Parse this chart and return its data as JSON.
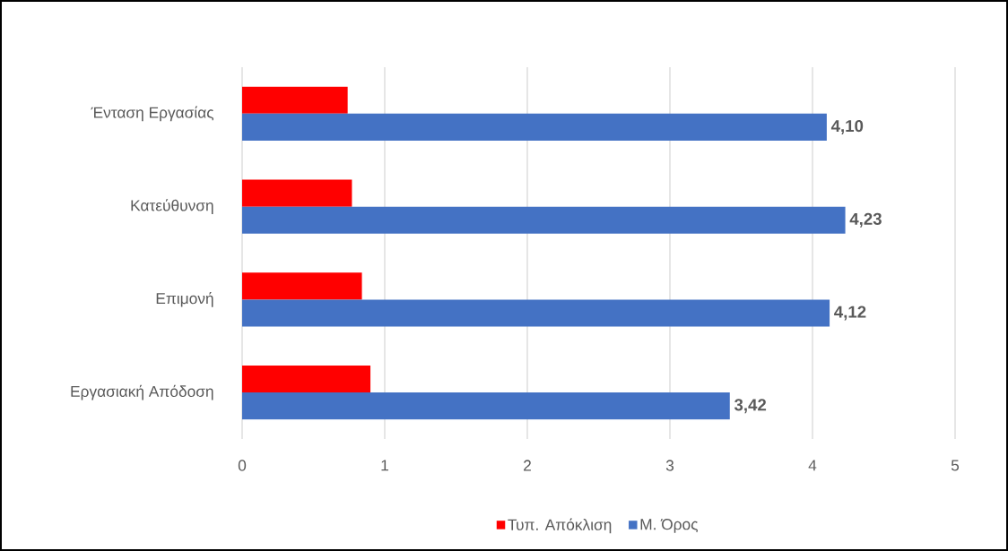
{
  "chart_data": {
    "type": "bar",
    "orientation": "horizontal",
    "categories": [
      "Ένταση Εργασίας",
      "Κατεύθυνση",
      "Επιμονή",
      "Εργασιακή Απόδοση"
    ],
    "series": [
      {
        "name": "Τυπ. Απόκλιση",
        "color": "#ff0000",
        "values": [
          0.74,
          0.77,
          0.84,
          0.9
        ]
      },
      {
        "name": "Μ. Όρος",
        "color": "#4472c4",
        "values": [
          4.1,
          4.23,
          4.12,
          3.42
        ],
        "value_labels": [
          "4,10",
          "4,23",
          "4,12",
          "3,42"
        ]
      }
    ],
    "xlim": [
      0,
      5
    ],
    "xticks": [
      0,
      1,
      2,
      3,
      4,
      5
    ],
    "grid": "x",
    "legend": "bottom"
  }
}
